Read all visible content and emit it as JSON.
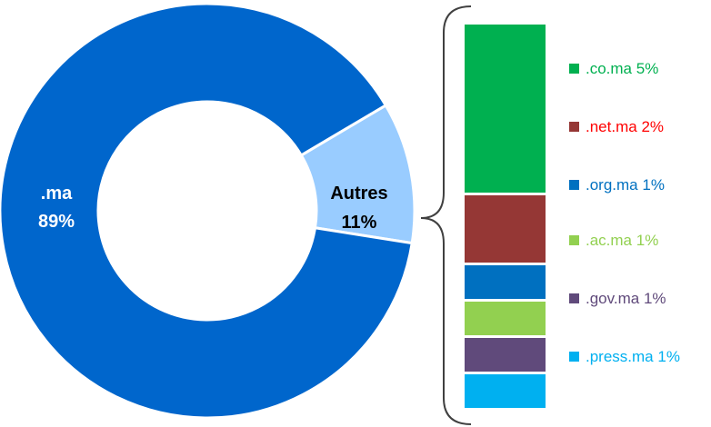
{
  "chart_data": [
    {
      "type": "pie",
      "style": "donut",
      "slices": [
        {
          "label": ".ma",
          "value": 89,
          "value_label": "89%",
          "color": "#0066CC",
          "label_color": "#ffffff"
        },
        {
          "label": "Autres",
          "value": 11,
          "value_label": "11%",
          "color": "#99CCFF",
          "label_color": "#000000"
        }
      ]
    },
    {
      "type": "bar",
      "style": "stacked-column",
      "breakdown_of": "Autres",
      "series": [
        {
          "name": ".co.ma",
          "value": 5,
          "value_label": "5%",
          "color": "#00B050",
          "legend_color": "#00B050",
          "text_color": "#00B050"
        },
        {
          "name": ".net.ma",
          "value": 2,
          "value_label": "2%",
          "color": "#953735",
          "legend_color": "#953735",
          "text_color": "#FF0000"
        },
        {
          "name": ".org.ma",
          "value": 1,
          "value_label": "1%",
          "color": "#0070C0",
          "legend_color": "#0070C0",
          "text_color": "#0070C0"
        },
        {
          "name": ".ac.ma",
          "value": 1,
          "value_label": "1%",
          "color": "#92D050",
          "legend_color": "#92D050",
          "text_color": "#92D050"
        },
        {
          "name": ".gov.ma",
          "value": 1,
          "value_label": "1%",
          "color": "#604A7B",
          "legend_color": "#604A7B",
          "text_color": "#604A7B"
        },
        {
          "name": ".press.ma",
          "value": 1,
          "value_label": "1%",
          "color": "#00B0F0",
          "legend_color": "#00B0F0",
          "text_color": "#00B0F0"
        }
      ]
    }
  ]
}
